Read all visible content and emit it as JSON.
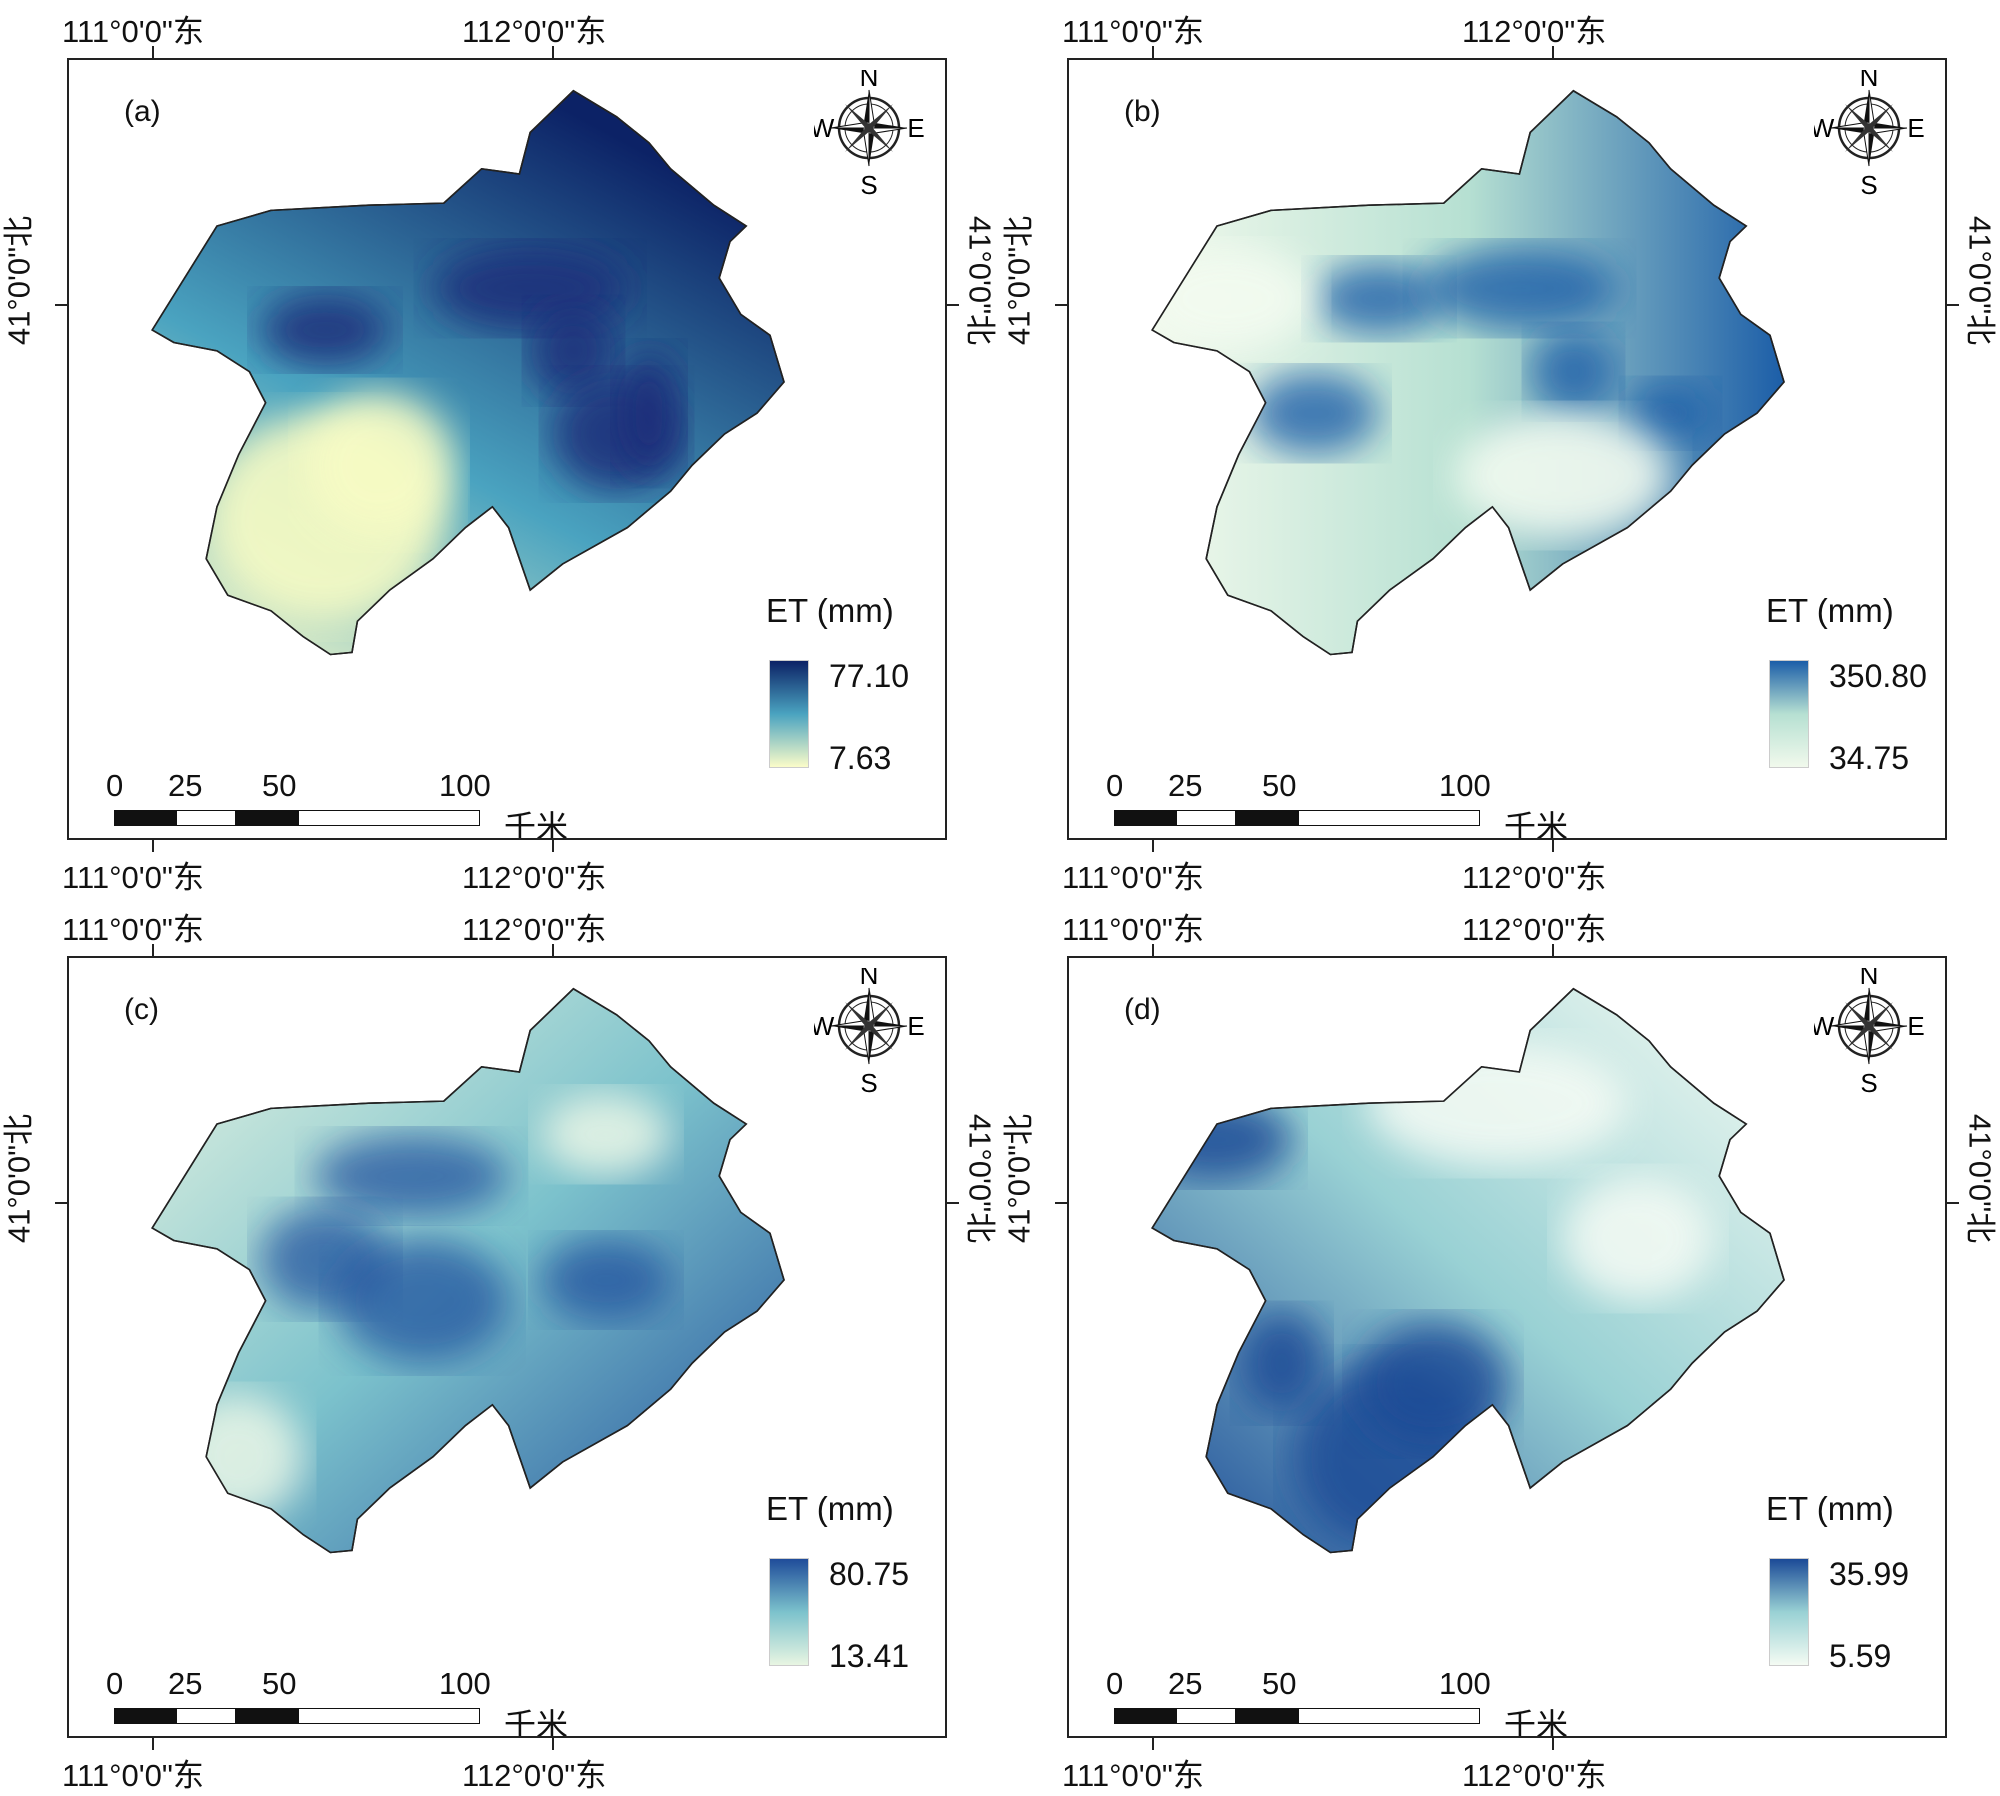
{
  "axis_labels": {
    "lon_111": "111°0'0\"东",
    "lon_112": "112°0'0\"东",
    "lat_41": "41°0'0\"北"
  },
  "compass": {
    "north": "N",
    "south": "S",
    "east": "E",
    "west": "W"
  },
  "scale_bar": {
    "ticks": [
      "0",
      "25",
      "50",
      "100"
    ],
    "unit": "千米"
  },
  "legend_title": "ET (mm)",
  "colors": {
    "high": "#0d2a6e",
    "mid": "#2f8fbf",
    "low_a": "#fdfdc8",
    "low_b": "#f3fbef",
    "boundary": "#222222"
  },
  "panels": [
    {
      "id": "a",
      "label": "(a)",
      "legend_max": "77.10",
      "legend_min": "7.63"
    },
    {
      "id": "b",
      "label": "(b)",
      "legend_max": "350.80",
      "legend_min": "34.75"
    },
    {
      "id": "c",
      "label": "(c)",
      "legend_max": "80.75",
      "legend_min": "13.41"
    },
    {
      "id": "d",
      "label": "(d)",
      "legend_max": "35.99",
      "legend_min": "5.59"
    }
  ]
}
